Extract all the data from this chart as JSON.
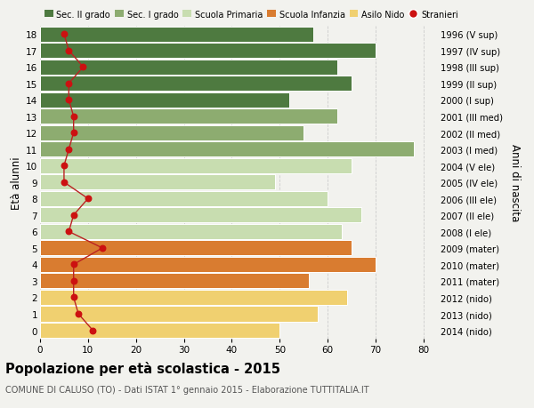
{
  "ages": [
    0,
    1,
    2,
    3,
    4,
    5,
    6,
    7,
    8,
    9,
    10,
    11,
    12,
    13,
    14,
    15,
    16,
    17,
    18
  ],
  "anni_nascita": [
    "2014 (nido)",
    "2013 (nido)",
    "2012 (nido)",
    "2011 (mater)",
    "2010 (mater)",
    "2009 (mater)",
    "2008 (I ele)",
    "2007 (II ele)",
    "2006 (III ele)",
    "2005 (IV ele)",
    "2004 (V ele)",
    "2003 (I med)",
    "2002 (II med)",
    "2001 (III med)",
    "2000 (I sup)",
    "1999 (II sup)",
    "1998 (III sup)",
    "1997 (IV sup)",
    "1996 (V sup)"
  ],
  "bar_values": [
    50,
    58,
    64,
    56,
    70,
    65,
    63,
    67,
    60,
    49,
    65,
    78,
    55,
    62,
    52,
    65,
    62,
    70,
    57
  ],
  "stranieri": [
    11,
    8,
    7,
    7,
    7,
    13,
    6,
    7,
    10,
    5,
    5,
    6,
    7,
    7,
    6,
    6,
    9,
    6,
    5
  ],
  "bar_colors": [
    "#f0d070",
    "#f0d070",
    "#f0d070",
    "#d97c30",
    "#d97c30",
    "#d97c30",
    "#c8ddb0",
    "#c8ddb0",
    "#c8ddb0",
    "#c8ddb0",
    "#c8ddb0",
    "#8dac70",
    "#8dac70",
    "#8dac70",
    "#4e7a40",
    "#4e7a40",
    "#4e7a40",
    "#4e7a40",
    "#4e7a40"
  ],
  "legend_labels": [
    "Sec. II grado",
    "Sec. I grado",
    "Scuola Primaria",
    "Scuola Infanzia",
    "Asilo Nido",
    "Stranieri"
  ],
  "legend_colors": [
    "#4e7a40",
    "#8dac70",
    "#c8ddb0",
    "#d97c30",
    "#f0d070",
    "#cc1111"
  ],
  "ylabel_left": "Età alunni",
  "ylabel_right": "Anni di nascita",
  "title": "Popolazione per età scolastica - 2015",
  "subtitle": "COMUNE DI CALUSO (TO) - Dati ISTAT 1° gennaio 2015 - Elaborazione TUTTITALIA.IT",
  "xlim": [
    0,
    83
  ],
  "ylim": [
    -0.5,
    18.5
  ],
  "background_color": "#f2f2ee",
  "plot_bg": "#f2f2ee",
  "grid_color": "#cccccc",
  "stranieri_color": "#cc1111",
  "stranieri_line_color": "#bb2222",
  "xticks": [
    0,
    10,
    20,
    30,
    40,
    50,
    60,
    70,
    80
  ]
}
